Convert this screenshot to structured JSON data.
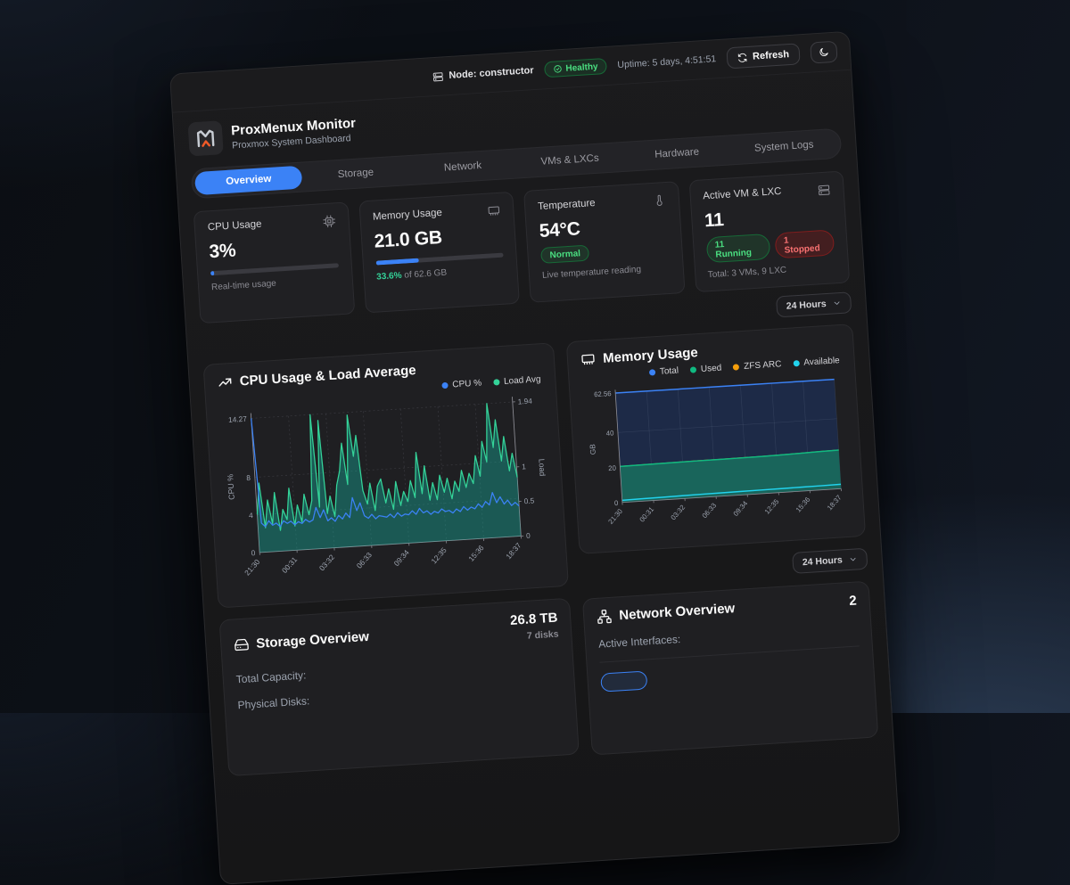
{
  "topbar": {
    "node_label": "Node: constructor",
    "health_label": "Healthy",
    "uptime": "Uptime: 5 days, 4:51:51",
    "refresh_label": "Refresh"
  },
  "brand": {
    "title": "ProxMenux Monitor",
    "subtitle": "Proxmox System Dashboard"
  },
  "tabs": {
    "items": [
      {
        "label": "Overview",
        "active": true
      },
      {
        "label": "Storage",
        "active": false
      },
      {
        "label": "Network",
        "active": false
      },
      {
        "label": "VMs & LXCs",
        "active": false
      },
      {
        "label": "Hardware",
        "active": false
      },
      {
        "label": "System Logs",
        "active": false
      }
    ]
  },
  "stats": {
    "cpu": {
      "title": "CPU Usage",
      "value": "3%",
      "percent": 3,
      "caption": "Real-time usage"
    },
    "memory": {
      "title": "Memory Usage",
      "value": "21.0 GB",
      "percent": 33.6,
      "caption_pct": "33.6%",
      "caption_rest": " of 62.6 GB"
    },
    "temperature": {
      "title": "Temperature",
      "value": "54°C",
      "badge": "Normal",
      "caption": "Live temperature reading"
    },
    "vms": {
      "title": "Active VM & LXC",
      "value": "11",
      "running_label": "11 Running",
      "stopped_label": "1 Stopped",
      "caption": "Total: 3 VMs, 9 LXC"
    }
  },
  "time_range": {
    "value": "24 Hours"
  },
  "icons": {
    "node": "server",
    "health": "check-circle",
    "refresh": "refresh-cw",
    "theme": "moon",
    "cpu": "cpu-chip",
    "memory": "ram-stick",
    "temperature": "thermometer",
    "vms": "server-stack",
    "cpu_chart": "trending-up",
    "memory_chart": "ram-stick",
    "storage": "hard-drive",
    "network": "share-nodes",
    "select": "chevron-down",
    "logo": "proxmenux-m"
  },
  "colors": {
    "accent_blue": "#3b82f6",
    "green": "#4ade80",
    "red": "#f87171",
    "teal_fill": "rgba(20,184,166,0.38)",
    "logo_orange": "#f05a28"
  },
  "storage": {
    "title": "Storage Overview",
    "summary_value": "26.8 TB",
    "summary_caption": "7 disks",
    "rows": [
      {
        "label": "Total Capacity:"
      },
      {
        "label": "Physical Disks:"
      }
    ]
  },
  "network": {
    "title": "Network Overview",
    "summary_value": "2",
    "rows": [
      {
        "label": "Active Interfaces:"
      }
    ],
    "interface_badge": ""
  },
  "chart_data": [
    {
      "id": "cpu_load",
      "type": "area",
      "title": "CPU Usage & Load Average",
      "x_labels": [
        "21:30",
        "00:31",
        "03:32",
        "06:33",
        "09:34",
        "12:35",
        "15:36",
        "18:37"
      ],
      "y_left": {
        "label": "CPU %",
        "ticks": [
          0,
          4,
          8,
          14.27
        ],
        "max": 14.27
      },
      "y_right": {
        "label": "Load",
        "ticks": [
          0,
          0.5,
          1,
          1.94
        ],
        "max": 1.94
      },
      "grid": "dotted",
      "legend_position": "top-right",
      "series": [
        {
          "name": "CPU %",
          "axis": "left",
          "color": "#3b82f6",
          "values": [
            14.27,
            3.1,
            2.7,
            3.3,
            2.8,
            3.0,
            2.6,
            3.2,
            2.9,
            3.1,
            2.7,
            3.0,
            2.8,
            3.2,
            2.9,
            3.1,
            4.4,
            3.3,
            4.1,
            2.9,
            3.2,
            2.8,
            3.4,
            3.0,
            3.6,
            3.1,
            5.2,
            3.8,
            4.6,
            3.2,
            2.9,
            3.3,
            2.8,
            3.1,
            3.0,
            2.9,
            3.2,
            2.8,
            3.3,
            2.9,
            3.1,
            3.0,
            3.4,
            3.0,
            3.6,
            3.1,
            3.3,
            2.9,
            3.2,
            3.0,
            3.4,
            3.1,
            3.2,
            2.9,
            3.3,
            3.0,
            3.5,
            3.1,
            3.4,
            3.2,
            3.7,
            3.3,
            3.9,
            3.5,
            4.8,
            3.7,
            4.3,
            3.5,
            3.9,
            3.3,
            3.6,
            3.2
          ]
        },
        {
          "name": "Load Avg",
          "axis": "right",
          "color": "#34d399",
          "fill": "rgba(20,184,166,0.38)",
          "values": [
            0.55,
            1.0,
            0.35,
            0.75,
            0.4,
            0.85,
            0.3,
            0.6,
            0.45,
            0.9,
            0.35,
            0.65,
            0.4,
            0.8,
            0.5,
            0.7,
            1.94,
            0.6,
            1.85,
            0.5,
            0.75,
            0.45,
            0.9,
            1.1,
            1.5,
            0.9,
            1.9,
            1.3,
            1.6,
            0.8,
            0.6,
            0.9,
            0.5,
            0.85,
            0.95,
            0.6,
            0.8,
            0.5,
            0.9,
            0.55,
            0.75,
            0.6,
            0.9,
            0.65,
            1.3,
            0.7,
            1.1,
            0.6,
            0.85,
            0.6,
            0.95,
            0.7,
            0.9,
            0.6,
            0.85,
            0.7,
            1.0,
            0.75,
            0.95,
            0.8,
            1.2,
            0.9,
            1.4,
            1.1,
            1.94,
            1.3,
            1.7,
            1.1,
            1.45,
            0.95,
            1.2,
            0.85
          ]
        }
      ]
    },
    {
      "id": "memory",
      "type": "area",
      "title": "Memory Usage",
      "x_labels": [
        "21:30",
        "00:31",
        "03:32",
        "06:33",
        "09:34",
        "12:35",
        "15:36",
        "18:37"
      ],
      "y_left": {
        "label": "GB",
        "ticks": [
          0,
          20,
          40,
          62.56
        ],
        "max": 62.56
      },
      "grid": "solid",
      "legend_position": "top-right",
      "series": [
        {
          "name": "Total",
          "color": "#3b82f6",
          "fill": "#1d2a47",
          "values": [
            62.56,
            62.56,
            62.56,
            62.56,
            62.56,
            62.56,
            62.56,
            62.56,
            62.56,
            62.56,
            62.56,
            62.56
          ]
        },
        {
          "name": "Used",
          "color": "#10b981",
          "fill": "#19655b",
          "values": [
            20.6,
            20.7,
            20.8,
            20.9,
            21.0,
            21.0,
            21.1,
            21.2,
            21.4,
            21.6,
            21.9,
            22.1
          ]
        },
        {
          "name": "ZFS ARC",
          "color": "#f59e0b",
          "values": [
            20.6,
            20.7,
            20.8,
            20.9,
            21.0,
            21.0,
            21.1,
            21.2,
            21.4,
            21.6,
            21.9,
            22.1
          ]
        },
        {
          "name": "Available",
          "color": "#22d3ee",
          "values": [
            1.2,
            1.4,
            1.5,
            1.7,
            1.8,
            1.9,
            2.0,
            2.1,
            2.2,
            2.3,
            2.4,
            2.5
          ]
        }
      ]
    }
  ]
}
